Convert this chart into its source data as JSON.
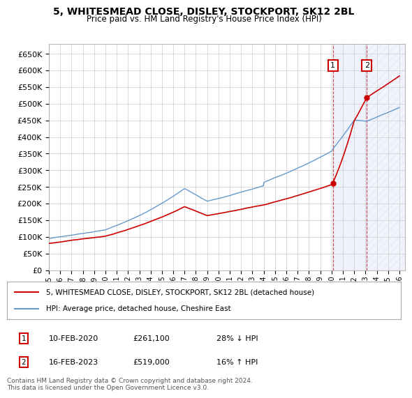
{
  "title": "5, WHITESMEAD CLOSE, DISLEY, STOCKPORT, SK12 2BL",
  "subtitle": "Price paid vs. HM Land Registry's House Price Index (HPI)",
  "ylim": [
    0,
    680000
  ],
  "yticks": [
    0,
    50000,
    100000,
    150000,
    200000,
    250000,
    300000,
    350000,
    400000,
    450000,
    500000,
    550000,
    600000,
    650000
  ],
  "xlim_start": 1995.0,
  "xlim_end": 2026.5,
  "background_color": "#ffffff",
  "grid_color": "#cccccc",
  "line1_color": "#cc0000",
  "line2_color": "#6699cc",
  "sale1_date": 2020.12,
  "sale1_price": 261100,
  "sale1_label": "1",
  "sale2_date": 2023.12,
  "sale2_price": 519000,
  "sale2_label": "2",
  "legend_line1": "5, WHITESMEAD CLOSE, DISLEY, STOCKPORT, SK12 2BL (detached house)",
  "legend_line2": "HPI: Average price, detached house, Cheshire East",
  "annotation1_date": "10-FEB-2020",
  "annotation1_price": "£261,100",
  "annotation1_hpi": "28% ↓ HPI",
  "annotation2_date": "16-FEB-2023",
  "annotation2_price": "£519,000",
  "annotation2_hpi": "16% ↑ HPI",
  "footer": "Contains HM Land Registry data © Crown copyright and database right 2024.\nThis data is licensed under the Open Government Licence v3.0.",
  "hatch_color": "#aabbee",
  "span_color": "#ddeeff"
}
